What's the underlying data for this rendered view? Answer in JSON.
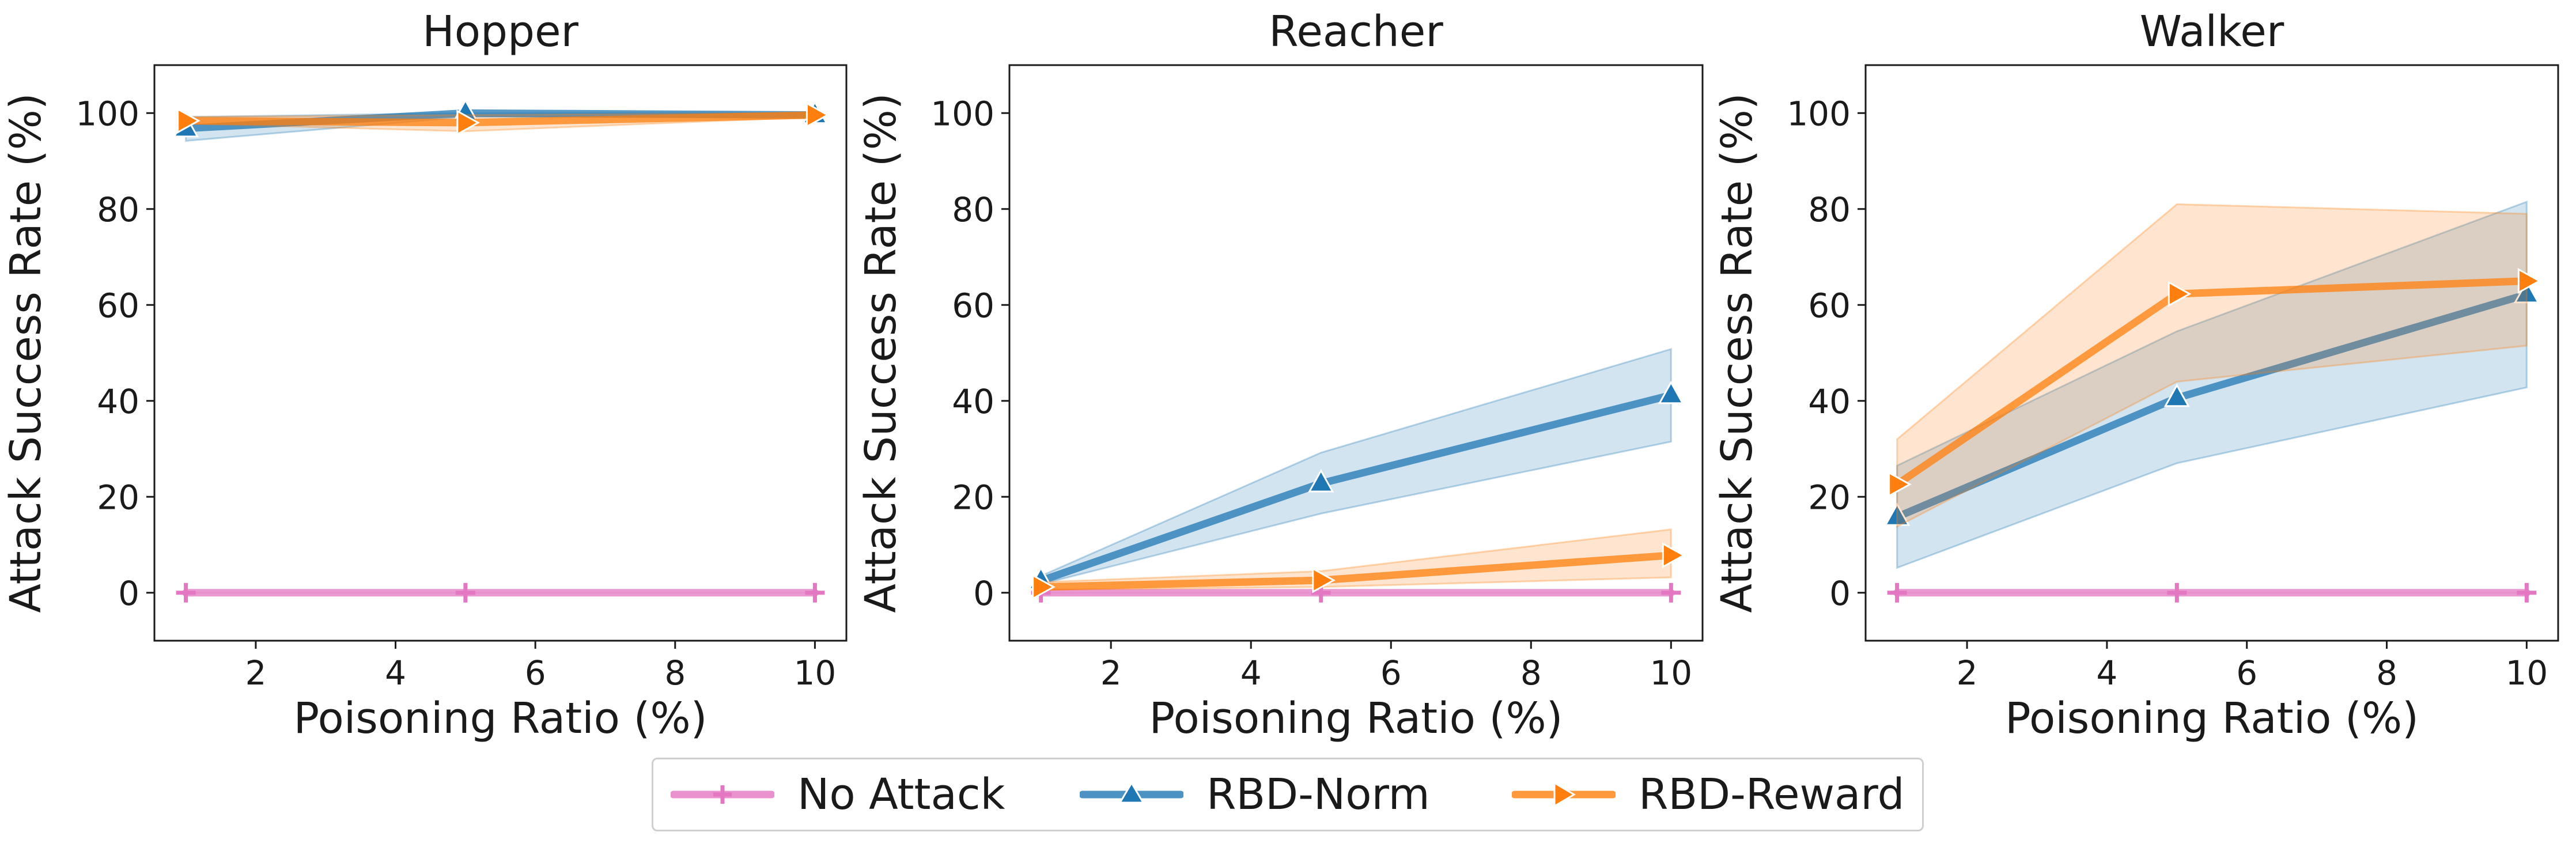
{
  "chart_data": [
    {
      "type": "line",
      "title": "Hopper",
      "xlabel": "Poisoning Ratio (%)",
      "ylabel": "Attack Success Rate (%)",
      "xlim": [
        0.55,
        10.45
      ],
      "ylim": [
        -10,
        110
      ],
      "xticks": [
        2,
        4,
        6,
        8,
        10
      ],
      "yticks": [
        0,
        20,
        40,
        60,
        80,
        100
      ],
      "x": [
        1,
        5,
        10
      ],
      "series": [
        {
          "name": "No Attack",
          "values": [
            0,
            0,
            0
          ],
          "lower": [
            0,
            0,
            0
          ],
          "upper": [
            0,
            0,
            0
          ]
        },
        {
          "name": "RBD-Norm",
          "values": [
            96.8,
            100,
            99.6
          ],
          "lower": [
            94.2,
            99.2,
            99.2
          ],
          "upper": [
            99.2,
            100,
            100
          ]
        },
        {
          "name": "RBD-Reward",
          "values": [
            98.4,
            98,
            99.6
          ],
          "lower": [
            97.8,
            96.2,
            99.2
          ],
          "upper": [
            99.2,
            99.6,
            100
          ]
        }
      ]
    },
    {
      "type": "line",
      "title": "Reacher",
      "xlabel": "Poisoning Ratio (%)",
      "ylabel": "Attack Success Rate (%)",
      "xlim": [
        0.55,
        10.45
      ],
      "ylim": [
        -10,
        110
      ],
      "xticks": [
        2,
        4,
        6,
        8,
        10
      ],
      "yticks": [
        0,
        20,
        40,
        60,
        80,
        100
      ],
      "x": [
        1,
        5,
        10
      ],
      "series": [
        {
          "name": "No Attack",
          "values": [
            0,
            0,
            0
          ],
          "lower": [
            0,
            0,
            0
          ],
          "upper": [
            0,
            0,
            0
          ]
        },
        {
          "name": "RBD-Norm",
          "values": [
            2.5,
            22.8,
            41.2
          ],
          "lower": [
            1.8,
            16.5,
            31.5
          ],
          "upper": [
            3.5,
            29.2,
            50.8
          ]
        },
        {
          "name": "RBD-Reward",
          "values": [
            1.2,
            2.6,
            7.8
          ],
          "lower": [
            0.6,
            1.2,
            3.2
          ],
          "upper": [
            2.2,
            4.5,
            13.2
          ]
        }
      ]
    },
    {
      "type": "line",
      "title": "Walker",
      "xlabel": "Poisoning Ratio (%)",
      "ylabel": "Attack Success Rate (%)",
      "xlim": [
        0.55,
        10.45
      ],
      "ylim": [
        -10,
        110
      ],
      "xticks": [
        2,
        4,
        6,
        8,
        10
      ],
      "yticks": [
        0,
        20,
        40,
        60,
        80,
        100
      ],
      "x": [
        1,
        5,
        10
      ],
      "series": [
        {
          "name": "No Attack",
          "values": [
            0,
            0,
            0
          ],
          "lower": [
            0,
            0,
            0
          ],
          "upper": [
            0,
            0,
            0
          ]
        },
        {
          "name": "RBD-Norm",
          "values": [
            15.8,
            40.6,
            62.2
          ],
          "lower": [
            5.2,
            27.0,
            42.8
          ],
          "upper": [
            26.5,
            54.5,
            81.5
          ]
        },
        {
          "name": "RBD-Reward",
          "values": [
            22.6,
            62.3,
            65.0
          ],
          "lower": [
            13.8,
            44.0,
            51.5
          ],
          "upper": [
            32.0,
            81.0,
            79.0
          ]
        }
      ]
    }
  ],
  "legend": {
    "items": [
      {
        "label": "No Attack",
        "color": "#e377c2",
        "marker": "plus-icon"
      },
      {
        "label": "RBD-Norm",
        "color": "#1f77b4",
        "marker": "triangle-up-icon"
      },
      {
        "label": "RBD-Reward",
        "color": "#ff7f0e",
        "marker": "triangle-right-icon"
      }
    ]
  },
  "colors": {
    "No Attack": "#e377c2",
    "RBD-Norm": "#1f77b4",
    "RBD-Reward": "#ff7f0e"
  }
}
